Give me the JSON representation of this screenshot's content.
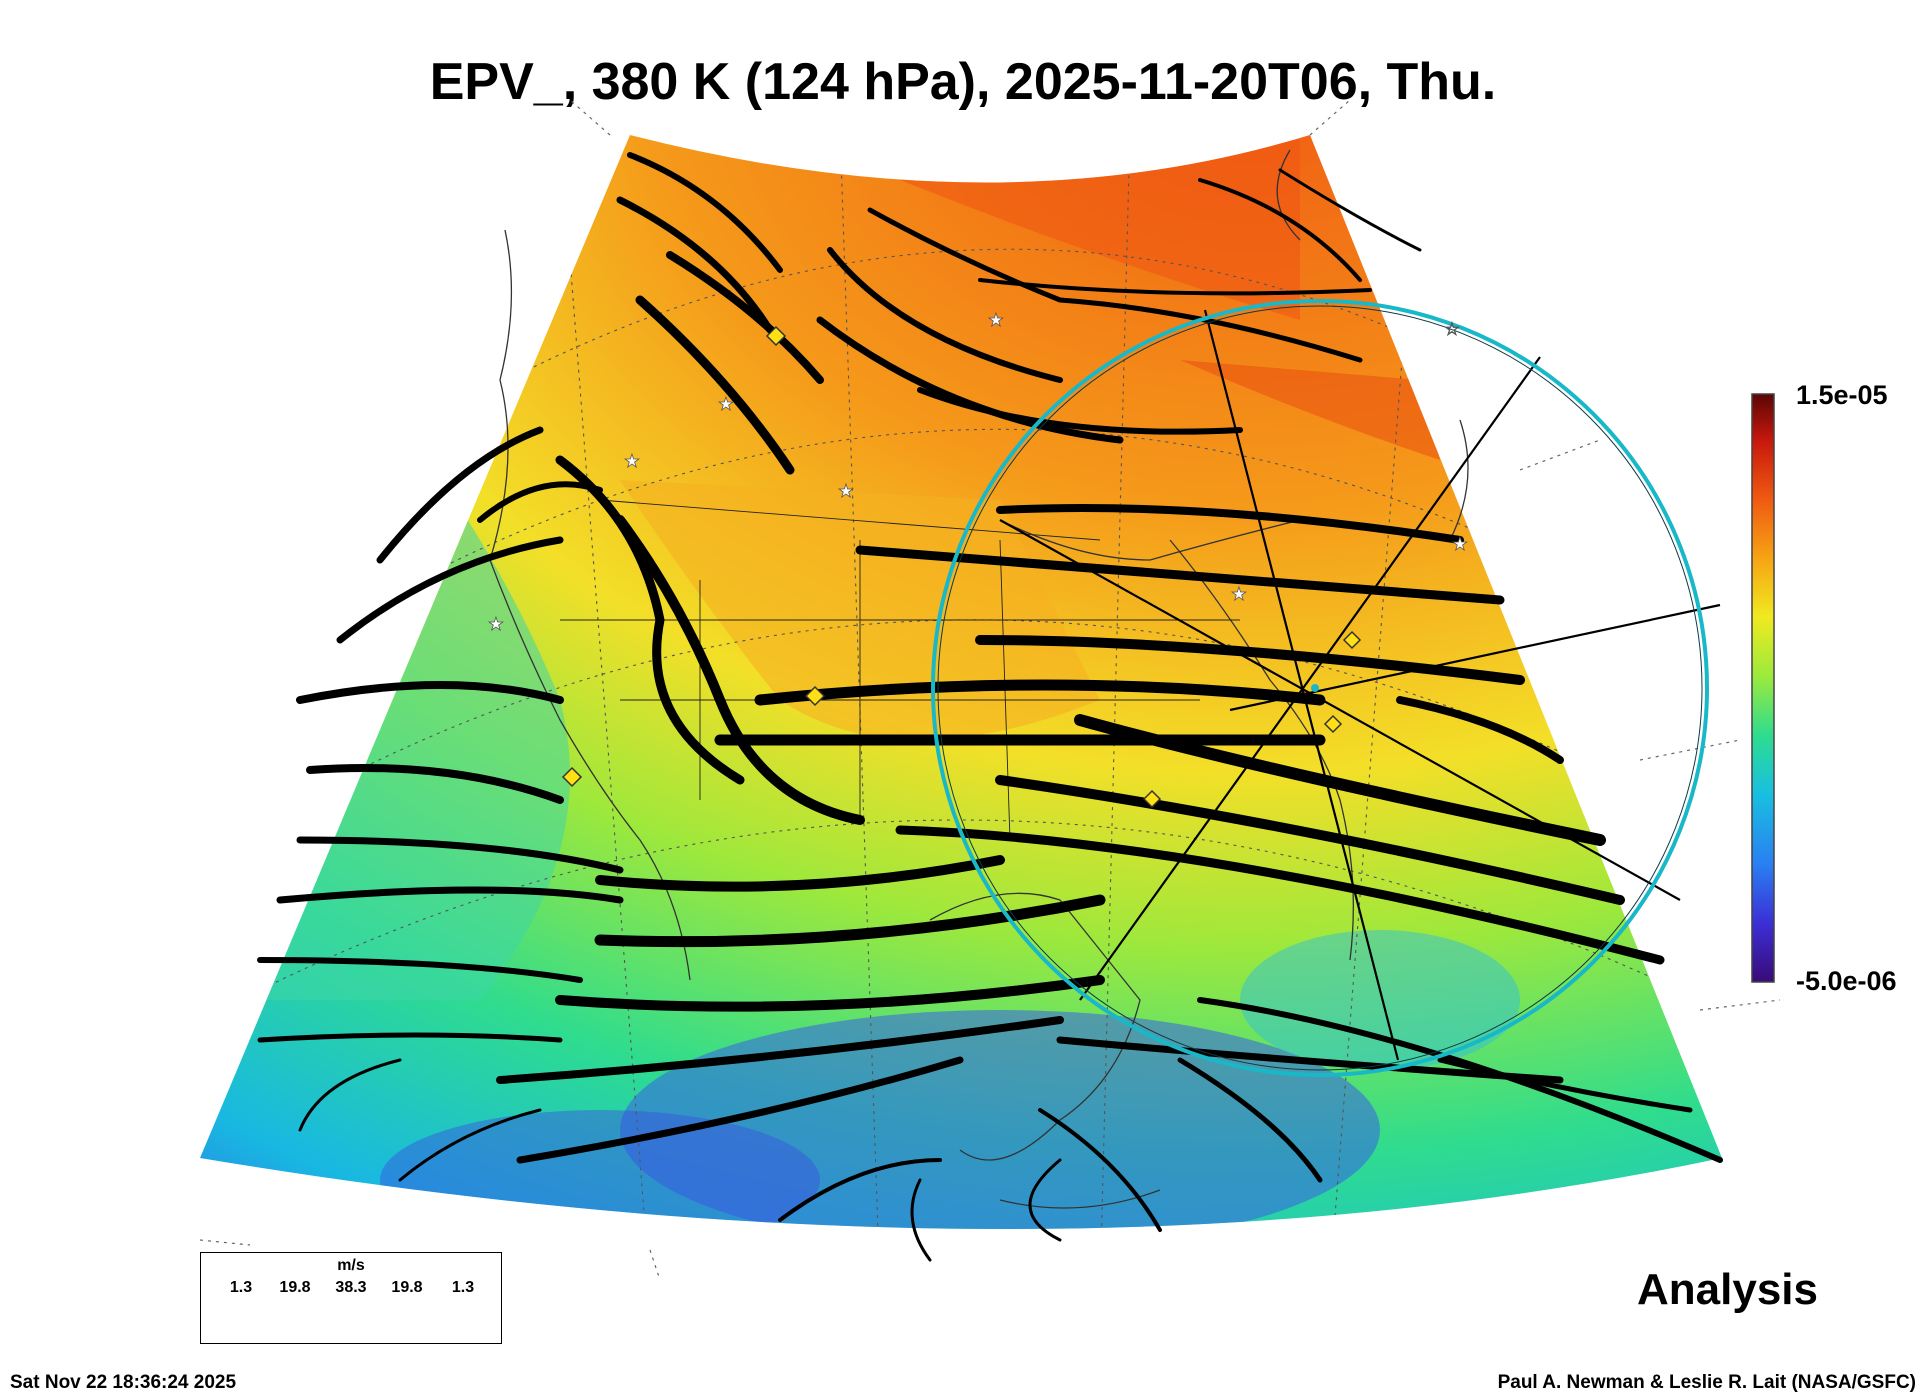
{
  "title": "EPV_, 380 K (124 hPa), 2025-11-20T06, Thu.",
  "colorbar": {
    "max_label": "1.5e-05",
    "min_label": "-5.0e-06",
    "colors": [
      "#3a0a78",
      "#3b2fd6",
      "#2a7ff2",
      "#18c0e0",
      "#2fdc8e",
      "#9bea3c",
      "#f0ea20",
      "#f6a414",
      "#f05a12",
      "#c8180c",
      "#5a0606"
    ]
  },
  "legend": {
    "unit": "m/s",
    "values": [
      "1.3",
      "19.8",
      "38.3",
      "19.8",
      "1.3"
    ]
  },
  "analysis_label": "Analysis",
  "timestamp": "Sat Nov 22 18:36:24 2025",
  "credit": "Paul A. Newman & Leslie R. Lait (NASA/GSFC)",
  "map_colors": {
    "high_epv": "#f38a22",
    "mid_epv": "#bfe23a",
    "low_epv": "#2fd0b0",
    "very_low_epv": "#3a6fe8",
    "circle": "#19b8c9"
  }
}
